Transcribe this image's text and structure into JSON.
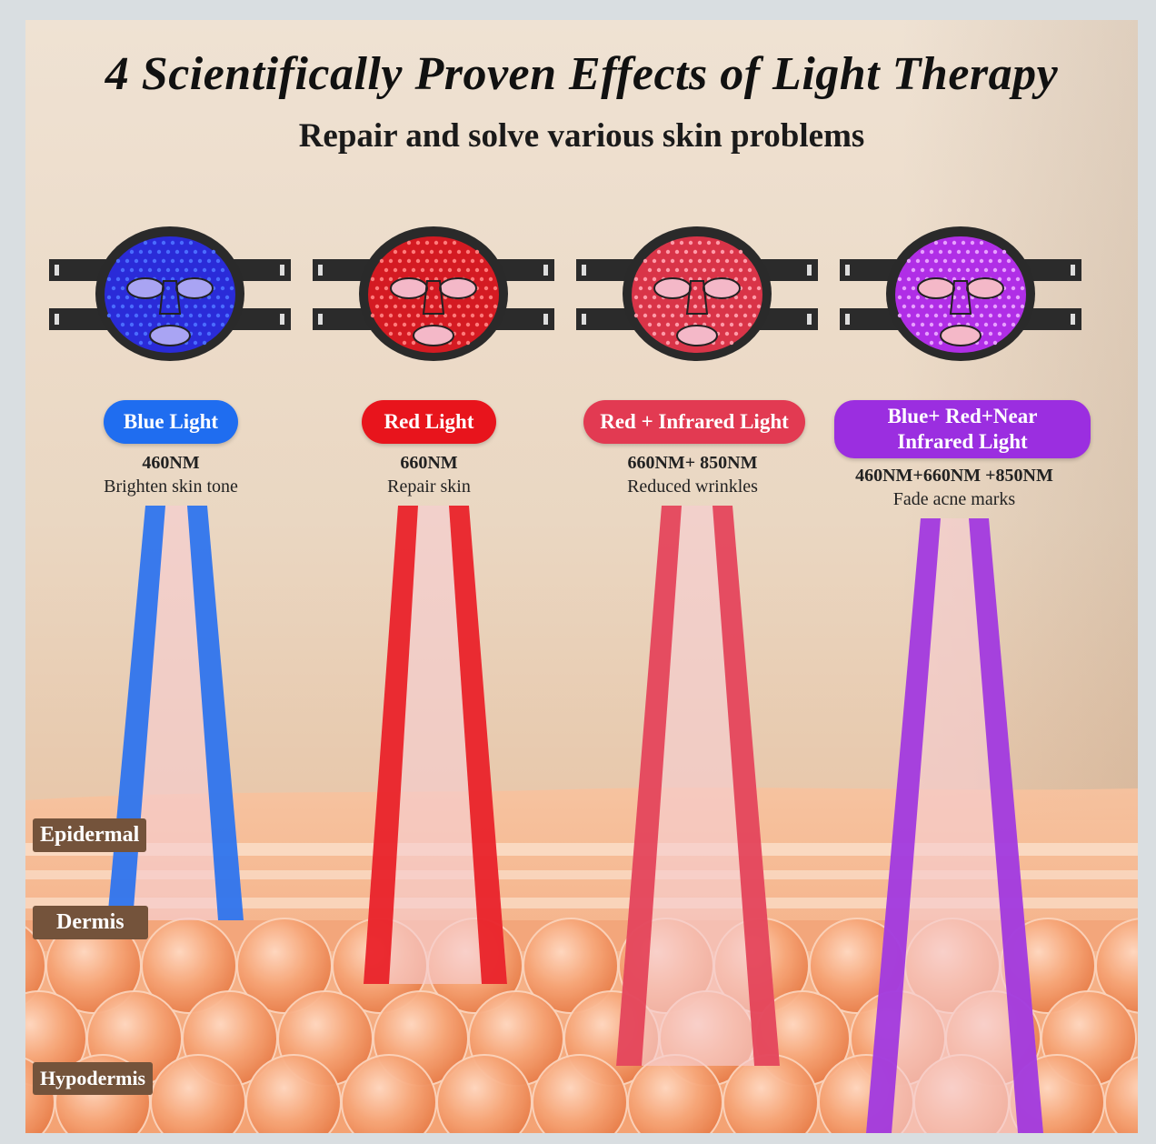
{
  "title": "4 Scientifically Proven Effects of Light Therapy",
  "subtitle": "Repair and solve various skin problems",
  "lights": [
    {
      "label": "Blue Light",
      "wavelength": "460NM",
      "effect": "Brighten skin tone",
      "color": "#1f6df0",
      "led": "#4a6cff",
      "mask_face": "#2a2bd8"
    },
    {
      "label": "Red Light",
      "wavelength": "660NM",
      "effect": "Repair skin",
      "color": "#e8141c",
      "led": "#ff7a7a",
      "mask_face": "#d41a22"
    },
    {
      "label": "Red + Infrared Light",
      "wavelength": "660NM+ 850NM",
      "effect": "Reduced wrinkles",
      "color": "#e23a52",
      "led": "#ff9aa8",
      "mask_face": "#d93448"
    },
    {
      "label": "Blue+ Red+Near Infrared Light",
      "label_line1": "Blue+ Red+Near",
      "label_line2": "Infrared Light",
      "wavelength": "460NM+660NM +850NM",
      "effect": "Fade acne marks",
      "color": "#9b2ee0",
      "led": "#e7a0ff",
      "mask_face": "#b02ee6"
    }
  ],
  "layers": {
    "epidermal": "Epidermal",
    "dermis": "Dermis",
    "hypodermis": "Hypodermis"
  }
}
